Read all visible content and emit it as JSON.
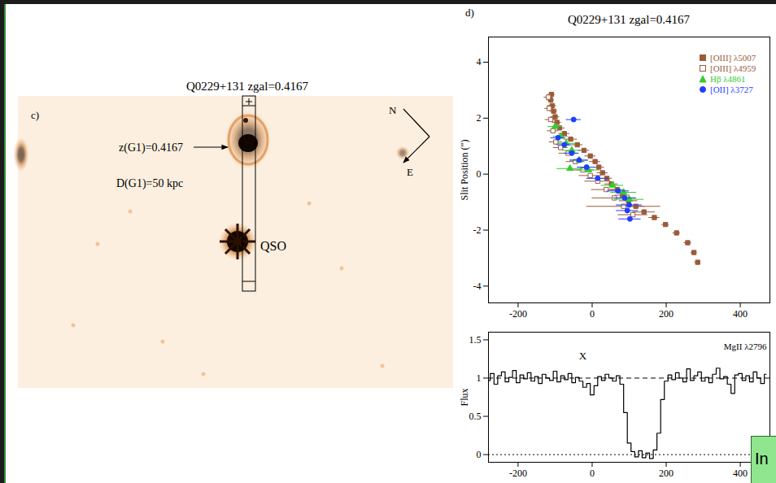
{
  "image_panel": {
    "panel": "c)",
    "title": "Q0229+131 zgal=0.4167",
    "labels": {
      "galaxy_redshift": "z(G1)=0.4167",
      "distance": "D(G1)=50 kpc",
      "qso": "QSO"
    },
    "compass": {
      "north": "N",
      "east": "E"
    }
  },
  "chart_data": [
    {
      "type": "scatter",
      "panel": "d)",
      "title": "Q0229+131 zgal=0.4167",
      "ylabel": "Slit Position (\")",
      "xlim": [
        -280,
        480
      ],
      "ylim": [
        -4.6,
        4.9
      ],
      "xticks": [
        -200,
        0,
        200,
        400
      ],
      "yticks": [
        -4,
        -2,
        0,
        2,
        4
      ],
      "legend": "top-right",
      "series": [
        {
          "name": "[OIII] λ5007",
          "color": "#9b5b3b",
          "marker": "square",
          "x": [
            -110,
            -112,
            -108,
            -104,
            -100,
            -95,
            -88,
            -75,
            -58,
            -40,
            -22,
            -5,
            8,
            18,
            28,
            40,
            52,
            68,
            82,
            98,
            118,
            140,
            168,
            198,
            228,
            258,
            275,
            285
          ],
          "y": [
            2.85,
            2.65,
            2.45,
            2.25,
            2.05,
            1.85,
            1.65,
            1.45,
            1.25,
            1.05,
            0.85,
            0.65,
            0.45,
            0.25,
            0.05,
            -0.15,
            -0.35,
            -0.55,
            -0.75,
            -0.95,
            -1.15,
            -1.35,
            -1.55,
            -1.8,
            -2.1,
            -2.45,
            -2.8,
            -3.15
          ],
          "xerr": [
            10,
            10,
            12,
            10,
            12,
            12,
            15,
            15,
            18,
            15,
            15,
            15,
            15,
            15,
            15,
            15,
            18,
            20,
            20,
            25,
            25,
            30,
            15,
            10,
            10,
            10,
            8,
            8
          ]
        },
        {
          "name": "[OIII] λ4959",
          "color": "#9b5b3b",
          "marker": "open-square",
          "x": [
            -118,
            -116,
            -112,
            -106,
            -98,
            -85,
            -65,
            -45,
            -25,
            -5,
            15,
            38,
            60,
            85,
            110
          ],
          "y": [
            2.75,
            2.35,
            1.95,
            1.55,
            1.15,
            0.95,
            0.75,
            0.45,
            0.15,
            -0.05,
            -0.25,
            -0.55,
            -0.85,
            -1.15,
            -1.45
          ],
          "xerr": [
            12,
            12,
            15,
            15,
            18,
            20,
            25,
            25,
            30,
            30,
            35,
            40,
            60,
            100,
            40
          ]
        },
        {
          "name": "Hβ λ4861",
          "color": "#33cc33",
          "marker": "triangle",
          "x": [
            -100,
            -85,
            -70,
            -55,
            -60,
            -35,
            -10,
            55,
            85,
            100
          ],
          "y": [
            1.7,
            1.35,
            1.1,
            0.85,
            0.2,
            0.5,
            0.15,
            -0.4,
            -0.65,
            -0.9
          ],
          "xerr": [
            20,
            20,
            25,
            25,
            35,
            25,
            30,
            30,
            35,
            40
          ]
        },
        {
          "name": "[OII] λ3727",
          "color": "#1f3fff",
          "marker": "circle",
          "x": [
            -50,
            -92,
            -75,
            -55,
            -35,
            -15,
            15,
            70,
            88,
            100,
            95,
            102
          ],
          "y": [
            1.95,
            1.3,
            1.05,
            0.75,
            0.5,
            0.25,
            -0.15,
            -0.6,
            -0.85,
            -1.1,
            -1.3,
            -1.6
          ],
          "xerr": [
            20,
            20,
            20,
            20,
            25,
            25,
            30,
            30,
            30,
            35,
            30,
            30
          ]
        }
      ]
    },
    {
      "type": "line",
      "ylabel": "Flux",
      "color": "#000000",
      "line_style": "steps",
      "xlim": [
        -280,
        480
      ],
      "ylim": [
        -0.1,
        1.6
      ],
      "xticks": [
        -200,
        0,
        200,
        400
      ],
      "yticks": [
        0,
        0.5,
        1,
        1.5
      ],
      "annotations": [
        "X",
        "MgII λ2796"
      ],
      "reference_lines": [
        {
          "y": 1,
          "line_style": "dashed"
        },
        {
          "y": 0,
          "line_style": "dotted"
        }
      ],
      "x": [
        -280,
        -270,
        -260,
        -250,
        -240,
        -230,
        -220,
        -210,
        -200,
        -190,
        -180,
        -170,
        -160,
        -150,
        -140,
        -130,
        -120,
        -110,
        -100,
        -90,
        -80,
        -70,
        -60,
        -50,
        -40,
        -30,
        -20,
        -10,
        0,
        10,
        20,
        30,
        40,
        50,
        60,
        70,
        80,
        90,
        100,
        110,
        120,
        130,
        140,
        150,
        160,
        170,
        180,
        190,
        200,
        210,
        220,
        230,
        240,
        250,
        260,
        270,
        280,
        290,
        300,
        310,
        320,
        330,
        340,
        350,
        360,
        370,
        380,
        390,
        400,
        410,
        420,
        430,
        440,
        450,
        460,
        470
      ],
      "values": [
        0.97,
        1.06,
        0.92,
        1.03,
        1.08,
        0.95,
        1.01,
        1.1,
        0.94,
        1.04,
        0.99,
        1.07,
        0.96,
        1.02,
        0.93,
        1.05,
        1.0,
        0.97,
        1.09,
        0.95,
        1.03,
        0.98,
        1.06,
        0.94,
        1.01,
        0.96,
        0.88,
        0.93,
        0.78,
        0.9,
        1.02,
        0.97,
        1.05,
        1.0,
        0.96,
        1.03,
        0.92,
        0.55,
        0.15,
        0.04,
        -0.03,
        0.05,
        -0.04,
        0.02,
        -0.05,
        0.06,
        0.28,
        0.72,
        0.96,
        1.04,
        0.98,
        1.07,
        1.0,
        0.95,
        1.12,
        0.97,
        1.03,
        1.08,
        0.96,
        1.01,
        0.94,
        1.05,
        1.13,
        0.99,
        1.02,
        0.92,
        0.8,
        1.04,
        1.06,
        0.97,
        1.03,
        0.95,
        1.08,
        1.0,
        0.93,
        1.05
      ]
    }
  ],
  "inset_box": {
    "text": "In"
  }
}
